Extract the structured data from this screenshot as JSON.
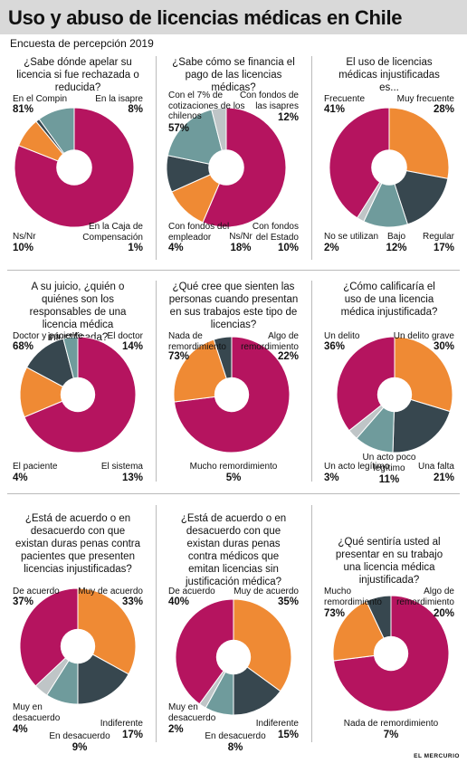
{
  "header": {
    "title": "Uso y abuso de licencias médicas en Chile",
    "subtitle": "Encuesta de percepción 2019"
  },
  "credit": "EL MERCURIO",
  "colors": {
    "magenta": "#b5145f",
    "orange": "#ef8a34",
    "darkslate": "#37474f",
    "teal": "#6f9b9c",
    "lightgray": "#bfc5c7"
  },
  "chart_data": [
    {
      "type": "pie",
      "title": "¿Sabe dónde apelar su licencia si fue rechazada o reducida?",
      "categories": [
        "En el Compin",
        "En la isapre",
        "En la Caja de Compensación",
        "Ns/Nr"
      ],
      "values": [
        81,
        8,
        1,
        10
      ],
      "value_labels": [
        "81%",
        "8%",
        "1%",
        "10%"
      ],
      "colors": [
        "#b5145f",
        "#ef8a34",
        "#37474f",
        "#6f9b9c"
      ]
    },
    {
      "type": "pie",
      "title": "¿Sabe cómo se financia el pago de las licencias médicas?",
      "categories": [
        "Con el 7% de cotizaciones de los chilenos",
        "Con fondos de las isapres",
        "Con fondos del Estado",
        "Ns/Nr",
        "Con fondos del empleador"
      ],
      "values": [
        57,
        12,
        10,
        18,
        4
      ],
      "value_labels": [
        "57%",
        "12%",
        "10%",
        "18%",
        "4%"
      ],
      "colors": [
        "#b5145f",
        "#ef8a34",
        "#37474f",
        "#6f9b9c",
        "#bfc5c7"
      ]
    },
    {
      "type": "pie",
      "title": "El uso de licencias médicas injustificadas es...",
      "categories": [
        "Muy frecuente",
        "Regular",
        "Bajo",
        "No se utilizan",
        "Frecuente"
      ],
      "values": [
        28,
        17,
        12,
        2,
        41
      ],
      "value_labels": [
        "28%",
        "17%",
        "12%",
        "2%",
        "41%"
      ],
      "colors": [
        "#ef8a34",
        "#37474f",
        "#6f9b9c",
        "#bfc5c7",
        "#b5145f"
      ]
    },
    {
      "type": "pie",
      "title": "A su juicio, ¿quién o quiénes son los responsables de una licencia médica injustificada?",
      "categories": [
        "Doctor y paciente",
        "El doctor",
        "El sistema",
        "El paciente"
      ],
      "values": [
        68,
        14,
        13,
        4
      ],
      "value_labels": [
        "68%",
        "14%",
        "13%",
        "4%"
      ],
      "colors": [
        "#b5145f",
        "#ef8a34",
        "#37474f",
        "#6f9b9c"
      ]
    },
    {
      "type": "pie",
      "title": "¿Qué cree que sienten las personas cuando presentan en sus trabajos este tipo de licencias?",
      "categories": [
        "Nada de remordimiento",
        "Algo de remordimiento",
        "Mucho remordimiento"
      ],
      "values": [
        73,
        22,
        5
      ],
      "value_labels": [
        "73%",
        "22%",
        "5%"
      ],
      "colors": [
        "#b5145f",
        "#ef8a34",
        "#37474f"
      ]
    },
    {
      "type": "pie",
      "title": "¿Cómo calificaría el uso de una licencia médica injustificada?",
      "categories": [
        "Un delito grave",
        "Una falta",
        "Un acto poco legítimo",
        "Un acto legítimo",
        "Un delito"
      ],
      "values": [
        30,
        21,
        11,
        3,
        36
      ],
      "value_labels": [
        "30%",
        "21%",
        "11%",
        "3%",
        "36%"
      ],
      "colors": [
        "#ef8a34",
        "#37474f",
        "#6f9b9c",
        "#bfc5c7",
        "#b5145f"
      ]
    },
    {
      "type": "pie",
      "title": "¿Está de acuerdo o en desacuerdo con que existan duras penas contra pacientes que presenten licencias injustificadas?",
      "categories": [
        "Muy de acuerdo",
        "Indiferente",
        "En desacuerdo",
        "Muy en desacuerdo",
        "De acuerdo"
      ],
      "values": [
        33,
        17,
        9,
        4,
        37
      ],
      "value_labels": [
        "33%",
        "17%",
        "9%",
        "4%",
        "37%"
      ],
      "colors": [
        "#ef8a34",
        "#37474f",
        "#6f9b9c",
        "#bfc5c7",
        "#b5145f"
      ]
    },
    {
      "type": "pie",
      "title": "¿Está de acuerdo o en desacuerdo con que existan duras penas contra médicos que emitan licencias sin justificación médica?",
      "categories": [
        "Muy de acuerdo",
        "Indiferente",
        "En desacuerdo",
        "Muy en desacuerdo",
        "De acuerdo"
      ],
      "values": [
        35,
        15,
        8,
        2,
        40
      ],
      "value_labels": [
        "35%",
        "15%",
        "8%",
        "2%",
        "40%"
      ],
      "colors": [
        "#ef8a34",
        "#37474f",
        "#6f9b9c",
        "#bfc5c7",
        "#b5145f"
      ]
    },
    {
      "type": "pie",
      "title": "¿Qué sentiría usted al presentar en su trabajo una licencia médica injustificada?",
      "categories": [
        "Mucho remordimiento",
        "Algo de remordimiento",
        "Nada de remordimiento"
      ],
      "values": [
        73,
        20,
        7
      ],
      "value_labels": [
        "73%",
        "20%",
        "7%"
      ],
      "colors": [
        "#b5145f",
        "#ef8a34",
        "#37474f"
      ]
    }
  ]
}
